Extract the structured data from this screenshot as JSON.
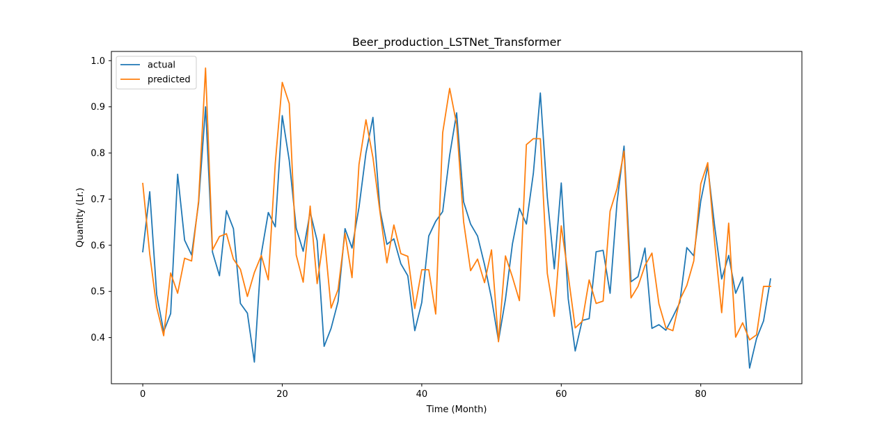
{
  "chart_data": {
    "type": "line",
    "title": "Beer_production_LSTNet_Transformer",
    "xlabel": "Time (Month)",
    "ylabel": "Quantity (Lr.)",
    "xlim": [
      -4.5,
      94.5
    ],
    "ylim": [
      0.3,
      1.02
    ],
    "xticks": [
      0,
      20,
      40,
      60,
      80
    ],
    "yticks": [
      0.4,
      0.5,
      0.6,
      0.7,
      0.8,
      0.9,
      1.0
    ],
    "ytick_labels": [
      "0.4",
      "0.5",
      "0.6",
      "0.7",
      "0.8",
      "0.9",
      "1.0"
    ],
    "grid": false,
    "legend_position": "upper-left",
    "series": [
      {
        "name": "actual",
        "color": "#1f77b4",
        "values": [
          0.586,
          0.716,
          0.493,
          0.413,
          0.452,
          0.754,
          0.611,
          0.579,
          0.691,
          0.9,
          0.585,
          0.534,
          0.675,
          0.636,
          0.474,
          0.453,
          0.347,
          0.582,
          0.671,
          0.64,
          0.881,
          0.784,
          0.637,
          0.587,
          0.672,
          0.61,
          0.381,
          0.42,
          0.478,
          0.636,
          0.594,
          0.682,
          0.8,
          0.877,
          0.678,
          0.602,
          0.614,
          0.56,
          0.534,
          0.415,
          0.476,
          0.62,
          0.652,
          0.673,
          0.795,
          0.887,
          0.694,
          0.646,
          0.62,
          0.558,
          0.485,
          0.393,
          0.483,
          0.603,
          0.68,
          0.646,
          0.756,
          0.93,
          0.704,
          0.549,
          0.735,
          0.484,
          0.371,
          0.437,
          0.441,
          0.586,
          0.589,
          0.496,
          0.694,
          0.815,
          0.521,
          0.532,
          0.594,
          0.42,
          0.428,
          0.416,
          0.445,
          0.476,
          0.595,
          0.577,
          0.696,
          0.771,
          0.64,
          0.527,
          0.578,
          0.496,
          0.531,
          0.334,
          0.398,
          0.436,
          0.527
        ]
      },
      {
        "name": "predicted",
        "color": "#ff7f0e",
        "values": [
          0.734,
          0.581,
          0.465,
          0.404,
          0.54,
          0.496,
          0.572,
          0.566,
          0.696,
          0.984,
          0.59,
          0.619,
          0.625,
          0.57,
          0.548,
          0.489,
          0.541,
          0.578,
          0.525,
          0.778,
          0.953,
          0.907,
          0.579,
          0.52,
          0.685,
          0.517,
          0.624,
          0.464,
          0.504,
          0.626,
          0.53,
          0.775,
          0.872,
          0.79,
          0.673,
          0.562,
          0.644,
          0.582,
          0.576,
          0.463,
          0.547,
          0.547,
          0.451,
          0.844,
          0.94,
          0.862,
          0.651,
          0.545,
          0.57,
          0.519,
          0.59,
          0.391,
          0.577,
          0.531,
          0.48,
          0.818,
          0.831,
          0.831,
          0.539,
          0.446,
          0.642,
          0.535,
          0.421,
          0.435,
          0.525,
          0.474,
          0.479,
          0.674,
          0.723,
          0.804,
          0.486,
          0.511,
          0.556,
          0.583,
          0.473,
          0.421,
          0.415,
          0.482,
          0.513,
          0.566,
          0.733,
          0.779,
          0.605,
          0.454,
          0.648,
          0.401,
          0.432,
          0.395,
          0.406,
          0.511,
          0.511
        ]
      }
    ]
  }
}
